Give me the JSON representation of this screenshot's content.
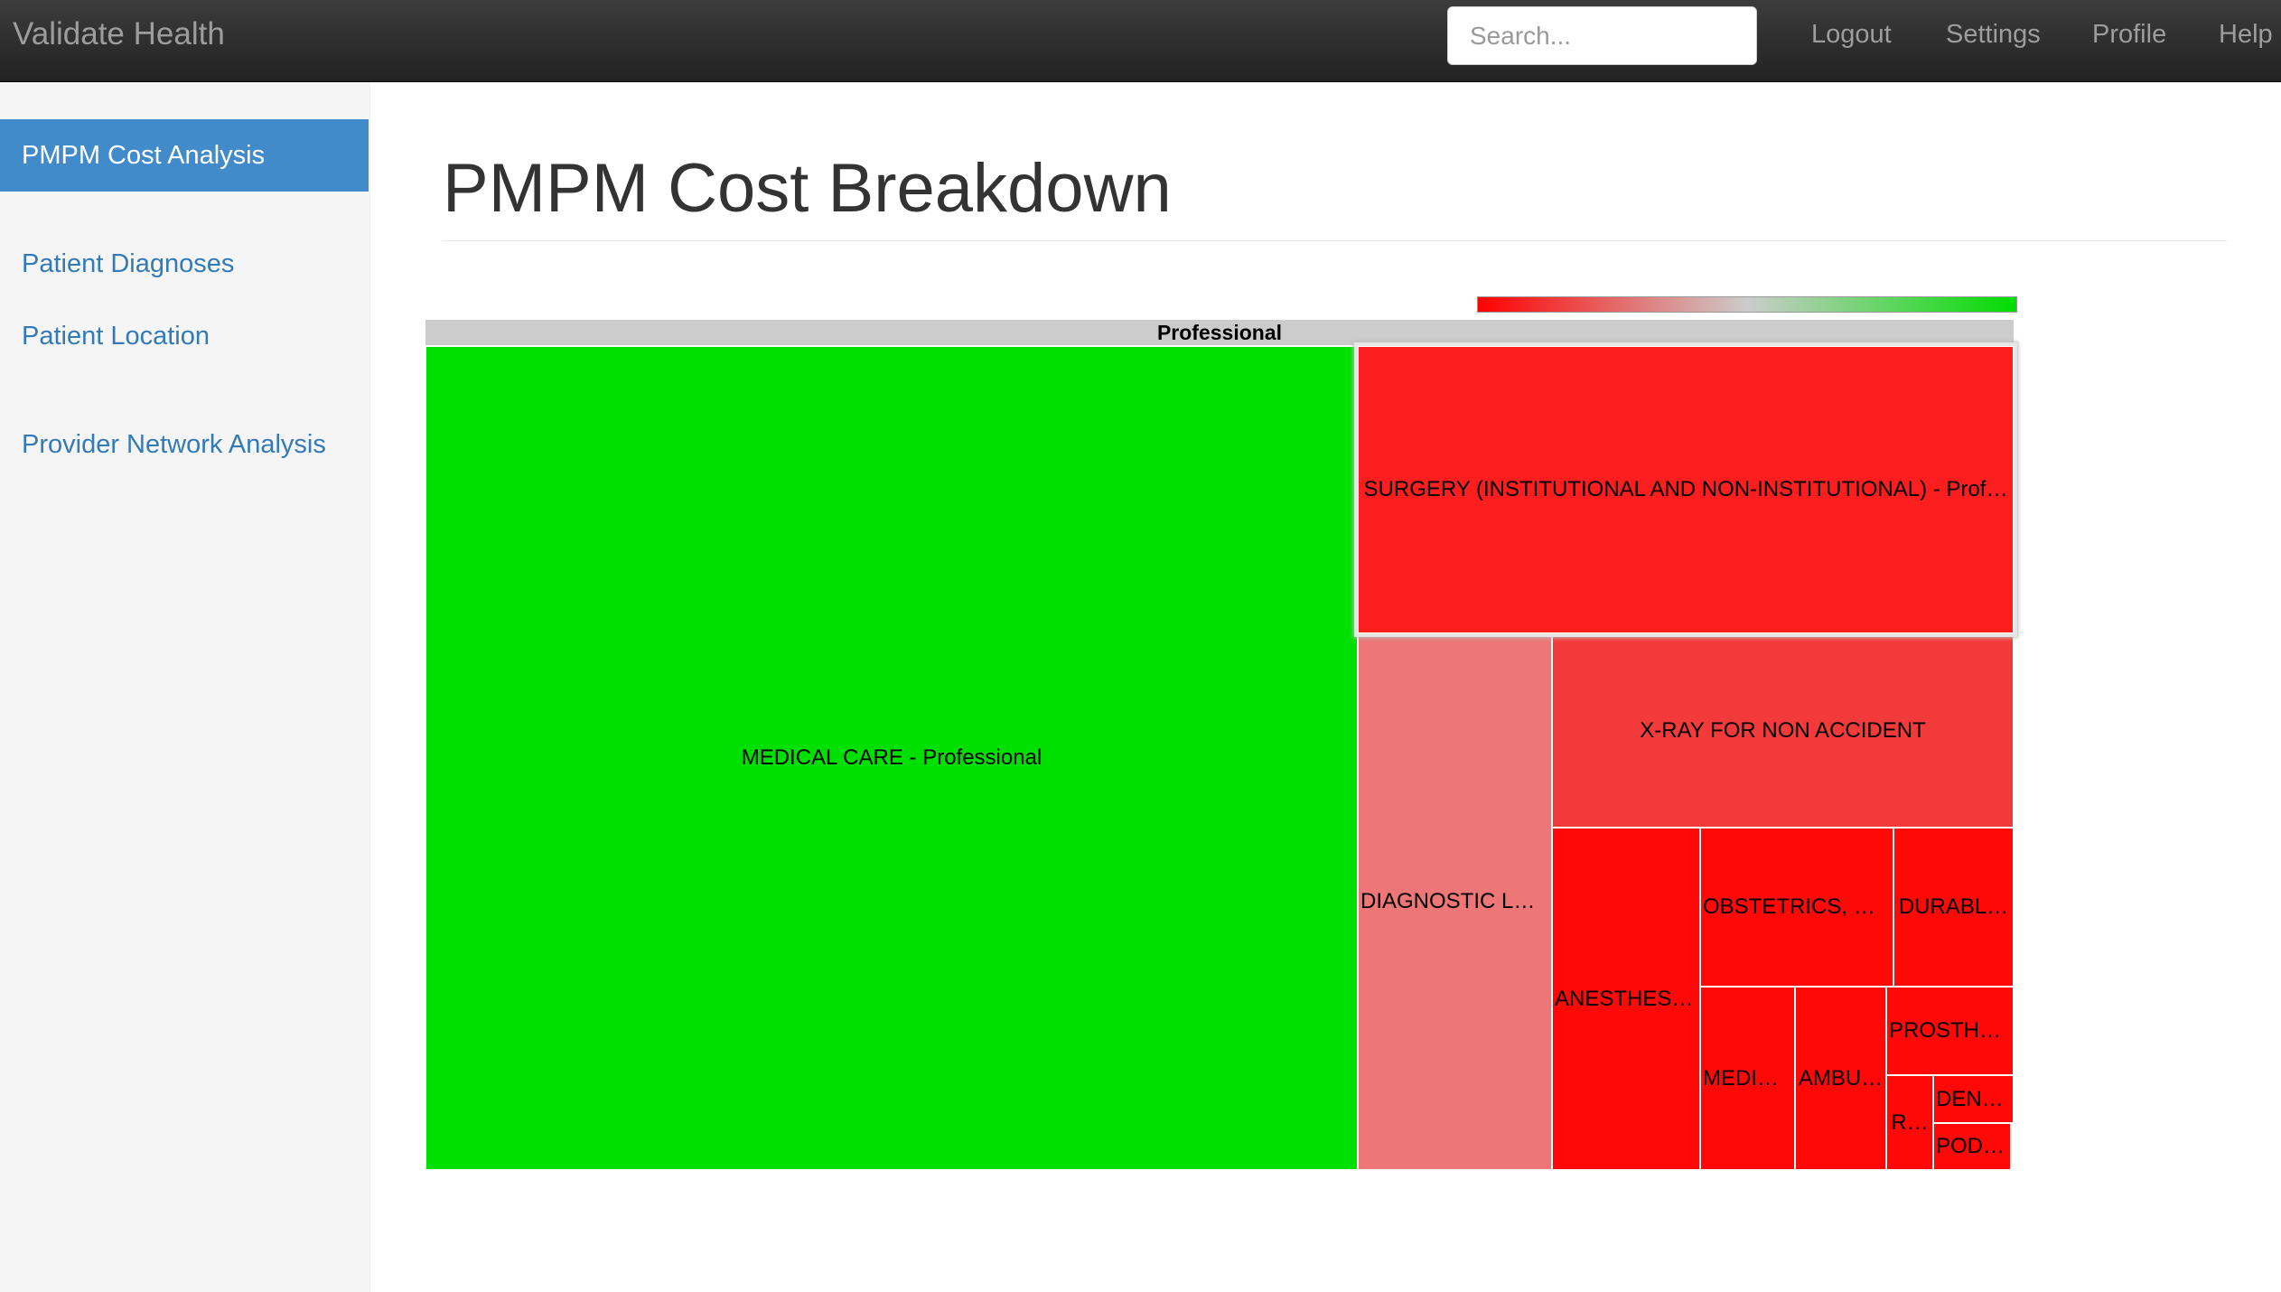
{
  "app": {
    "title": "Validate Health"
  },
  "navbar": {
    "search_placeholder": "Search...",
    "links": [
      "Logout",
      "Settings",
      "Profile",
      "Help"
    ]
  },
  "sidebar": {
    "items": [
      {
        "label": "PMPM Cost Analysis",
        "active": true
      },
      {
        "label": "Patient Diagnoses",
        "active": false
      },
      {
        "label": "Patient Location",
        "active": false
      },
      {
        "label": "Provider Network Analysis",
        "active": false
      }
    ]
  },
  "main": {
    "title": "PMPM Cost Breakdown"
  },
  "chart_data": {
    "type": "treemap",
    "parent": "Professional",
    "color_scale": {
      "low": "#ff0000",
      "mid": "#cccccc",
      "high": "#00dd00"
    },
    "nodes": [
      {
        "label": "MEDICAL CARE - Professional",
        "display": "MEDICAL CARE - Professional",
        "color": "#00e000"
      },
      {
        "label": "SURGERY (INSTITUTIONAL AND NON-INSTITUTIONAL) - Prof…",
        "display": "SURGERY (INSTITUTIONAL AND NON-INSTITUTIONAL) - Prof…",
        "color": "#fa1e1e"
      },
      {
        "label": "DIAGNOSTIC LA…",
        "display": "DIAGNOSTIC LA…",
        "color": "#ed7676"
      },
      {
        "label": "X-RAY FOR NON ACCIDENT",
        "display": "X-RAY FOR NON ACCIDENT",
        "color": "#f33a3a"
      },
      {
        "label": "ANESTHESI…",
        "display": "ANESTHESI…",
        "color": "#ff0808"
      },
      {
        "label": "OBSTETRICS, N…",
        "display": "OBSTETRICS, N…",
        "color": "#ff0808"
      },
      {
        "label": "DURABL…",
        "display": "DURABL…",
        "color": "#ff0808"
      },
      {
        "label": "PROSTHE…",
        "display": "PROSTHE…",
        "color": "#ff0808"
      },
      {
        "label": "MEDIC…",
        "display": "MEDIC…",
        "color": "#ff0808"
      },
      {
        "label": "AMBU…",
        "display": "AMBU…",
        "color": "#ff0808"
      },
      {
        "label": "DENT…",
        "display": "DENT…",
        "color": "#ff0808"
      },
      {
        "label": "R…",
        "display": "R…",
        "color": "#ff0808"
      },
      {
        "label": "PODI…",
        "display": "PODI…",
        "color": "#ff0808"
      }
    ]
  }
}
